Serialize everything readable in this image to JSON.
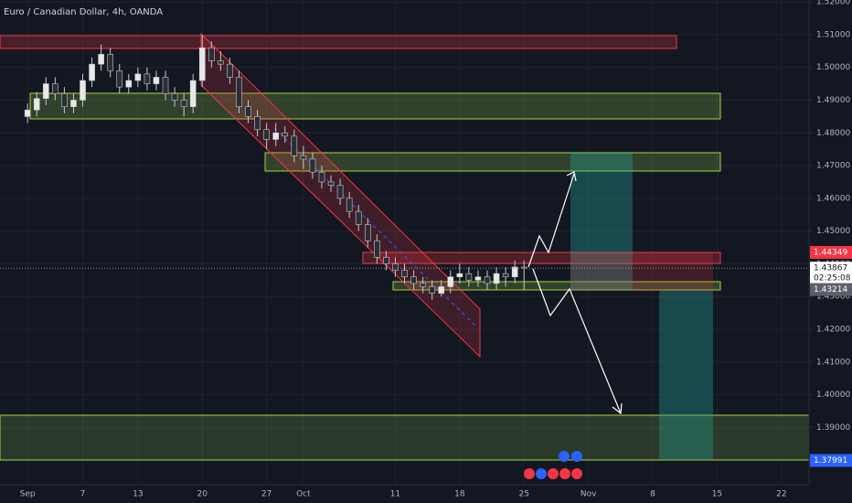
{
  "chart_data": {
    "type": "candlestick",
    "title": "Euro / Canadian Dollar, 4h, OANDA",
    "x": [
      0,
      1,
      2,
      3,
      4,
      5,
      6,
      7,
      8,
      9,
      10,
      11,
      12,
      13,
      14,
      15,
      16,
      17,
      18,
      19,
      20,
      21,
      22,
      23,
      24,
      25,
      26,
      27,
      28,
      29,
      30,
      31,
      32,
      33,
      34,
      35,
      36,
      37,
      38,
      39,
      40,
      41,
      42,
      43,
      44,
      45,
      46,
      47,
      48,
      49,
      50,
      51,
      52,
      53,
      54
    ],
    "open": [
      1.485,
      1.487,
      1.4905,
      1.495,
      1.492,
      1.488,
      1.49,
      1.496,
      1.501,
      1.504,
      1.499,
      1.494,
      1.496,
      1.498,
      1.495,
      1.497,
      1.492,
      1.49,
      1.488,
      1.496,
      1.506,
      1.502,
      1.501,
      1.497,
      1.488,
      1.485,
      1.481,
      1.478,
      1.48,
      1.479,
      1.473,
      1.472,
      1.468,
      1.465,
      1.464,
      1.46,
      1.456,
      1.452,
      1.447,
      1.442,
      1.44,
      1.438,
      1.436,
      1.434,
      1.433,
      1.431,
      1.433,
      1.436,
      1.437,
      1.435,
      1.436,
      1.434,
      1.437,
      1.436,
      1.439
    ],
    "high": [
      1.489,
      1.4925,
      1.497,
      1.497,
      1.494,
      1.492,
      1.498,
      1.503,
      1.507,
      1.506,
      1.501,
      1.498,
      1.5,
      1.5,
      1.499,
      1.499,
      1.494,
      1.492,
      1.498,
      1.51,
      1.508,
      1.505,
      1.503,
      1.499,
      1.49,
      1.487,
      1.483,
      1.483,
      1.482,
      1.481,
      1.476,
      1.474,
      1.47,
      1.467,
      1.466,
      1.462,
      1.458,
      1.454,
      1.449,
      1.444,
      1.442,
      1.44,
      1.438,
      1.436,
      1.435,
      1.435,
      1.438,
      1.44,
      1.439,
      1.438,
      1.438,
      1.439,
      1.439,
      1.441,
      1.441
    ],
    "low": [
      1.483,
      1.485,
      1.4885,
      1.49,
      1.486,
      1.486,
      1.488,
      1.494,
      1.499,
      1.497,
      1.492,
      1.492,
      1.494,
      1.493,
      1.493,
      1.49,
      1.488,
      1.485,
      1.486,
      1.494,
      1.5,
      1.499,
      1.495,
      1.486,
      1.483,
      1.479,
      1.475,
      1.476,
      1.477,
      1.471,
      1.469,
      1.466,
      1.463,
      1.462,
      1.458,
      1.454,
      1.45,
      1.445,
      1.44,
      1.438,
      1.436,
      1.434,
      1.432,
      1.431,
      1.429,
      1.43,
      1.431,
      1.434,
      1.433,
      1.433,
      1.432,
      1.432,
      1.433,
      1.434,
      1.432
    ],
    "close": [
      1.487,
      1.4905,
      1.495,
      1.492,
      1.488,
      1.49,
      1.496,
      1.501,
      1.504,
      1.499,
      1.494,
      1.496,
      1.498,
      1.495,
      1.497,
      1.492,
      1.49,
      1.488,
      1.496,
      1.506,
      1.502,
      1.501,
      1.497,
      1.488,
      1.485,
      1.481,
      1.478,
      1.48,
      1.479,
      1.473,
      1.472,
      1.468,
      1.465,
      1.464,
      1.46,
      1.456,
      1.452,
      1.447,
      1.442,
      1.44,
      1.438,
      1.436,
      1.434,
      1.433,
      1.431,
      1.433,
      1.436,
      1.437,
      1.435,
      1.436,
      1.434,
      1.437,
      1.436,
      1.439,
      1.43867
    ],
    "up_color": "#e8e8e8",
    "down_color": "#2a2e39",
    "xlim": [
      -3,
      85
    ],
    "xticks": [
      {
        "value": 0,
        "label": "Sep"
      },
      {
        "value": 6,
        "label": "7"
      },
      {
        "value": 12,
        "label": "13"
      },
      {
        "value": 19,
        "label": "20"
      },
      {
        "value": 26,
        "label": "27"
      },
      {
        "value": 30,
        "label": "Oct"
      },
      {
        "value": 40,
        "label": "11"
      },
      {
        "value": 47,
        "label": "18"
      },
      {
        "value": 54,
        "label": "25"
      },
      {
        "value": 61,
        "label": "Nov"
      },
      {
        "value": 68,
        "label": "8"
      },
      {
        "value": 75,
        "label": "15"
      },
      {
        "value": 82,
        "label": "22"
      }
    ],
    "ylim": [
      1.3725,
      1.5206
    ],
    "yticks": [
      {
        "value": 1.38,
        "label": "1.38000"
      },
      {
        "value": 1.39,
        "label": "1.39000"
      },
      {
        "value": 1.4,
        "label": "1.40000"
      },
      {
        "value": 1.41,
        "label": "1.41000"
      },
      {
        "value": 1.42,
        "label": "1.42000"
      },
      {
        "value": 1.43,
        "label": "1.43000"
      },
      {
        "value": 1.44,
        "label": "1.44000"
      },
      {
        "value": 1.45,
        "label": "1.45000"
      },
      {
        "value": 1.46,
        "label": "1.46000"
      },
      {
        "value": 1.47,
        "label": "1.47000"
      },
      {
        "value": 1.48,
        "label": "1.48000"
      },
      {
        "value": 1.49,
        "label": "1.49000"
      },
      {
        "value": 1.5,
        "label": "1.50000"
      },
      {
        "value": 1.51,
        "label": "1.51000"
      },
      {
        "value": 1.52,
        "label": "1.52000"
      }
    ],
    "grid": true,
    "price_labels": [
      {
        "value": 1.44349,
        "label": "1.44349",
        "color": "#f23645"
      },
      {
        "value": 1.43867,
        "label": "1.43867",
        "color": "#ffffff"
      },
      {
        "value": 1.43214,
        "label": "1.43214",
        "color": "#5d606b"
      },
      {
        "value": 1.37991,
        "label": "1.37991",
        "color": "#2962ff"
      }
    ],
    "countdown": "02:25:08"
  }
}
